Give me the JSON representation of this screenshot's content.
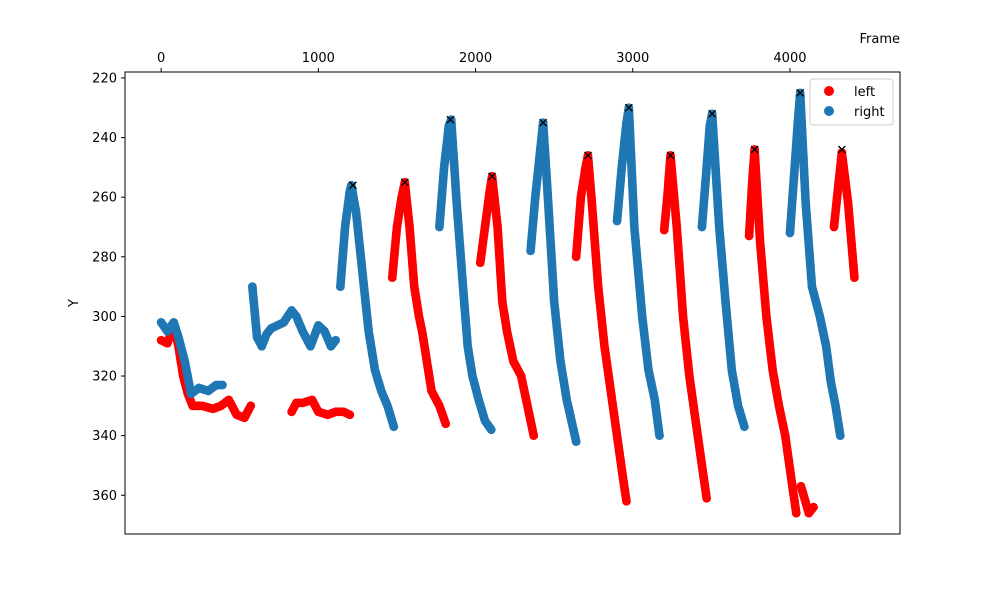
{
  "chart_data": {
    "type": "scatter",
    "xlabel": "Frame",
    "ylabel": "Y",
    "x_axis_position": "top",
    "y_inverted": true,
    "xlim": [
      -230,
      4700
    ],
    "ylim": [
      373,
      218
    ],
    "xticks": [
      0,
      1000,
      2000,
      3000,
      4000
    ],
    "yticks": [
      220,
      240,
      260,
      280,
      300,
      320,
      340,
      360
    ],
    "legend": {
      "placement": "top-right"
    },
    "grid": false,
    "series": [
      {
        "name": "left",
        "color": "#ff0000",
        "segments": [
          [
            [
              0,
              308
            ],
            [
              40,
              309
            ],
            [
              80,
              303
            ],
            [
              110,
              310
            ],
            [
              140,
              320
            ],
            [
              170,
              326
            ],
            [
              200,
              330
            ],
            [
              260,
              330
            ],
            [
              330,
              331
            ],
            [
              380,
              330
            ],
            [
              430,
              328
            ],
            [
              480,
              333
            ],
            [
              530,
              334
            ],
            [
              570,
              330
            ]
          ],
          [
            [
              830,
              332
            ],
            [
              860,
              329
            ],
            [
              900,
              329
            ],
            [
              960,
              328
            ],
            [
              1000,
              332
            ],
            [
              1060,
              333
            ],
            [
              1110,
              332
            ],
            [
              1160,
              332
            ],
            [
              1200,
              333
            ]
          ],
          [
            [
              1470,
              287
            ],
            [
              1500,
              270
            ],
            [
              1530,
              260
            ],
            [
              1550,
              255
            ],
            [
              1580,
              270
            ],
            [
              1610,
              290
            ],
            [
              1640,
              300
            ],
            [
              1660,
              305
            ],
            [
              1690,
              315
            ],
            [
              1720,
              325
            ],
            [
              1770,
              330
            ],
            [
              1810,
              336
            ]
          ],
          [
            [
              2030,
              282
            ],
            [
              2060,
              270
            ],
            [
              2090,
              258
            ],
            [
              2105,
              253
            ],
            [
              2140,
              270
            ],
            [
              2170,
              295
            ],
            [
              2200,
              305
            ],
            [
              2240,
              315
            ],
            [
              2290,
              320
            ],
            [
              2330,
              330
            ],
            [
              2370,
              340
            ]
          ],
          [
            [
              2640,
              280
            ],
            [
              2670,
              260
            ],
            [
              2700,
              250
            ],
            [
              2715,
              246
            ],
            [
              2740,
              262
            ],
            [
              2780,
              290
            ],
            [
              2820,
              310
            ],
            [
              2860,
              325
            ],
            [
              2900,
              340
            ],
            [
              2940,
              355
            ],
            [
              2960,
              362
            ]
          ],
          [
            [
              3200,
              271
            ],
            [
              3220,
              260
            ],
            [
              3240,
              246
            ],
            [
              3280,
              270
            ],
            [
              3320,
              300
            ],
            [
              3360,
              320
            ],
            [
              3400,
              335
            ],
            [
              3440,
              350
            ],
            [
              3470,
              361
            ]
          ],
          [
            [
              3740,
              273
            ],
            [
              3760,
              255
            ],
            [
              3775,
              244
            ],
            [
              3810,
              275
            ],
            [
              3850,
              300
            ],
            [
              3890,
              318
            ],
            [
              3930,
              330
            ],
            [
              3970,
              340
            ],
            [
              4010,
              355
            ],
            [
              4040,
              366
            ]
          ],
          [
            [
              4070,
              357
            ],
            [
              4120,
              366
            ],
            [
              4150,
              364
            ]
          ],
          [
            [
              4280,
              270
            ],
            [
              4310,
              255
            ],
            [
              4330,
              245
            ],
            [
              4370,
              262
            ],
            [
              4410,
              287
            ]
          ]
        ]
      },
      {
        "name": "right",
        "color": "#1f77b4",
        "segments": [
          [
            [
              0,
              302
            ],
            [
              40,
              305
            ],
            [
              80,
              302
            ],
            [
              110,
              307
            ],
            [
              150,
              315
            ],
            [
              190,
              326
            ],
            [
              240,
              324
            ],
            [
              300,
              325
            ],
            [
              350,
              323
            ],
            [
              390,
              323
            ]
          ],
          [
            [
              580,
              290
            ],
            [
              610,
              307
            ],
            [
              640,
              310
            ],
            [
              670,
              306
            ],
            [
              700,
              304
            ],
            [
              740,
              303
            ],
            [
              780,
              302
            ],
            [
              830,
              298
            ],
            [
              860,
              300
            ],
            [
              900,
              305
            ],
            [
              950,
              310
            ],
            [
              1000,
              303
            ],
            [
              1040,
              305
            ],
            [
              1080,
              310
            ],
            [
              1110,
              308
            ]
          ],
          [
            [
              1140,
              290
            ],
            [
              1170,
              270
            ],
            [
              1200,
              258
            ],
            [
              1210,
              256
            ],
            [
              1240,
              265
            ],
            [
              1280,
              285
            ],
            [
              1320,
              305
            ],
            [
              1360,
              318
            ],
            [
              1400,
              325
            ],
            [
              1440,
              330
            ],
            [
              1480,
              337
            ]
          ],
          [
            [
              1770,
              270
            ],
            [
              1800,
              250
            ],
            [
              1830,
              236
            ],
            [
              1845,
              234
            ],
            [
              1880,
              262
            ],
            [
              1920,
              290
            ],
            [
              1950,
              310
            ],
            [
              1980,
              320
            ],
            [
              2020,
              328
            ],
            [
              2060,
              335
            ],
            [
              2100,
              338
            ]
          ],
          [
            [
              2350,
              278
            ],
            [
              2380,
              260
            ],
            [
              2410,
              245
            ],
            [
              2430,
              235
            ],
            [
              2460,
              260
            ],
            [
              2500,
              295
            ],
            [
              2540,
              315
            ],
            [
              2580,
              328
            ],
            [
              2610,
              335
            ],
            [
              2640,
              342
            ]
          ],
          [
            [
              2900,
              268
            ],
            [
              2930,
              250
            ],
            [
              2960,
              235
            ],
            [
              2975,
              230
            ],
            [
              3010,
              270
            ],
            [
              3060,
              300
            ],
            [
              3100,
              318
            ],
            [
              3140,
              328
            ],
            [
              3170,
              340
            ]
          ],
          [
            [
              3440,
              270
            ],
            [
              3470,
              250
            ],
            [
              3490,
              236
            ],
            [
              3505,
              232
            ],
            [
              3550,
              270
            ],
            [
              3590,
              295
            ],
            [
              3630,
              318
            ],
            [
              3670,
              330
            ],
            [
              3710,
              337
            ]
          ],
          [
            [
              4000,
              272
            ],
            [
              4030,
              250
            ],
            [
              4050,
              235
            ],
            [
              4065,
              225
            ],
            [
              4100,
              262
            ],
            [
              4140,
              290
            ],
            [
              4190,
              300
            ],
            [
              4230,
              310
            ],
            [
              4260,
              322
            ],
            [
              4290,
              330
            ],
            [
              4320,
              340
            ]
          ]
        ]
      }
    ],
    "markers": {
      "type": "x",
      "color": "#000000",
      "points": [
        [
          1220,
          256
        ],
        [
          1550,
          255
        ],
        [
          1840,
          234
        ],
        [
          2105,
          253
        ],
        [
          2430,
          235
        ],
        [
          2715,
          246
        ],
        [
          2975,
          230
        ],
        [
          3240,
          246
        ],
        [
          3505,
          232
        ],
        [
          3775,
          244
        ],
        [
          4065,
          225
        ],
        [
          4330,
          244
        ]
      ]
    }
  }
}
